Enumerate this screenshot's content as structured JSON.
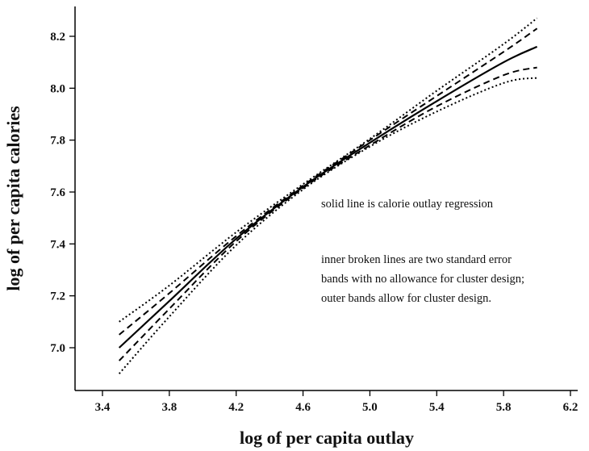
{
  "chart_data": {
    "type": "line",
    "title": "",
    "xlabel": "log of per capita outlay",
    "ylabel": "log of per capita calories",
    "xlim": [
      3.4,
      6.2
    ],
    "ylim": [
      6.85,
      8.3
    ],
    "xticks": [
      "3.4",
      "3.8",
      "4.2",
      "4.6",
      "5.0",
      "5.4",
      "5.8",
      "6.2"
    ],
    "yticks": [
      "7.0",
      "7.2",
      "7.4",
      "7.6",
      "7.8",
      "8.0",
      "8.2"
    ],
    "grid": false,
    "x": [
      3.5,
      3.8,
      4.2,
      4.6,
      5.0,
      5.4,
      5.8,
      6.0
    ],
    "series": [
      {
        "style": "solid",
        "values": [
          7.0,
          7.18,
          7.42,
          7.62,
          7.79,
          7.95,
          8.1,
          8.16
        ]
      },
      {
        "style": "dashed",
        "values": [
          7.05,
          7.21,
          7.43,
          7.625,
          7.8,
          7.97,
          8.14,
          8.23
        ]
      },
      {
        "style": "dashed",
        "values": [
          6.95,
          7.15,
          7.41,
          7.615,
          7.78,
          7.93,
          8.05,
          8.08
        ]
      },
      {
        "style": "dotted",
        "values": [
          7.1,
          7.24,
          7.445,
          7.63,
          7.805,
          7.99,
          8.17,
          8.27
        ]
      },
      {
        "style": "dotted",
        "values": [
          6.9,
          7.12,
          7.395,
          7.61,
          7.775,
          7.91,
          8.02,
          8.04
        ]
      }
    ],
    "annotations": [
      "solid line is calorie outlay regression",
      "inner broken lines are two standard error",
      "bands with no allowance for cluster design;",
      "outer bands allow for cluster design."
    ]
  }
}
